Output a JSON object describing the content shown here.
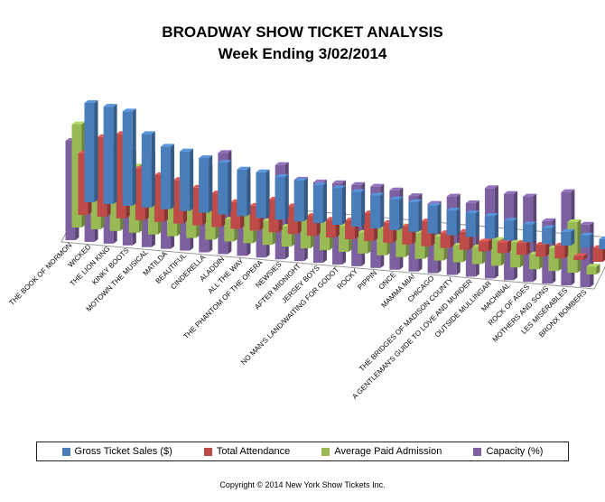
{
  "chart_data": {
    "type": "bar",
    "title": "BROADWAY SHOW TICKET ANALYSIS",
    "subtitle": "Week Ending 3/02/2014",
    "categories": [
      "THE BOOK OF MORMON",
      "WICKED",
      "THE LION KING",
      "KINKY BOOTS",
      "MOTOWN THE MUSICAL",
      "MATILDA",
      "BEAUTIFUL",
      "CINDERELLA",
      "ALADDIN",
      "ALL THE WAY",
      "THE PHANTOM OF THE OPERA",
      "NEWSIES",
      "AFTER MIDNIGHT",
      "JERSEY BOYS",
      "NO MAN'S LAND/WAITING FOR GODOT",
      "ROCKY",
      "PIPPIN",
      "ONCE",
      "MAMMA MIA!",
      "CHICAGO",
      "THE BRIDGES OF MADISON COUNTY",
      "A GENTLEMAN'S GUIDE TO LOVE AND MURDER",
      "OUTSIDE MULLINGAR",
      "MACHINAL",
      "ROCK OF AGES",
      "MOTHERS AND SONS",
      "LES MISÉRABLES",
      "BRONX BOMBERS"
    ],
    "series": [
      {
        "name": "Gross Ticket Sales ($)",
        "color": "#4a7ebb",
        "values": [
          100,
          98,
          95,
          74,
          63,
          60,
          55,
          52,
          47,
          46,
          43,
          41,
          38,
          37,
          35,
          33,
          31,
          30,
          28,
          25,
          24,
          23,
          20,
          18,
          16,
          14,
          12,
          10
        ]
      },
      {
        "name": "Total Attendance",
        "color": "#be4b48",
        "values": [
          62,
          80,
          85,
          52,
          47,
          44,
          38,
          34,
          27,
          25,
          33,
          28,
          20,
          18,
          19,
          28,
          20,
          18,
          25,
          15,
          18,
          10,
          11,
          12,
          12,
          13,
          4,
          14
        ]
      },
      {
        "name": "Average Paid Admission",
        "color": "#98b954",
        "values": [
          104,
          78,
          75,
          67,
          46,
          48,
          40,
          30,
          22,
          32,
          24,
          20,
          32,
          27,
          26,
          21,
          27,
          31,
          26,
          24,
          17,
          17,
          26,
          25,
          15,
          23,
          51,
          8
        ]
      },
      {
        "name": "Capacity (%)",
        "color": "#7d60a0",
        "values": [
          100,
          98,
          98,
          93,
          93,
          96,
          89,
          86,
          102,
          78,
          80,
          95,
          82,
          81,
          82,
          82,
          82,
          80,
          76,
          70,
          79,
          74,
          91,
          87,
          86,
          63,
          94,
          63
        ]
      }
    ],
    "legend": "bottom",
    "grid": false
  },
  "legend_labels": [
    "Gross Ticket Sales ($)",
    "Total Attendance",
    "Average Paid Admission",
    "Capacity (%)"
  ],
  "copyright": "Copyright © 2014 New York Show Tickets Inc."
}
